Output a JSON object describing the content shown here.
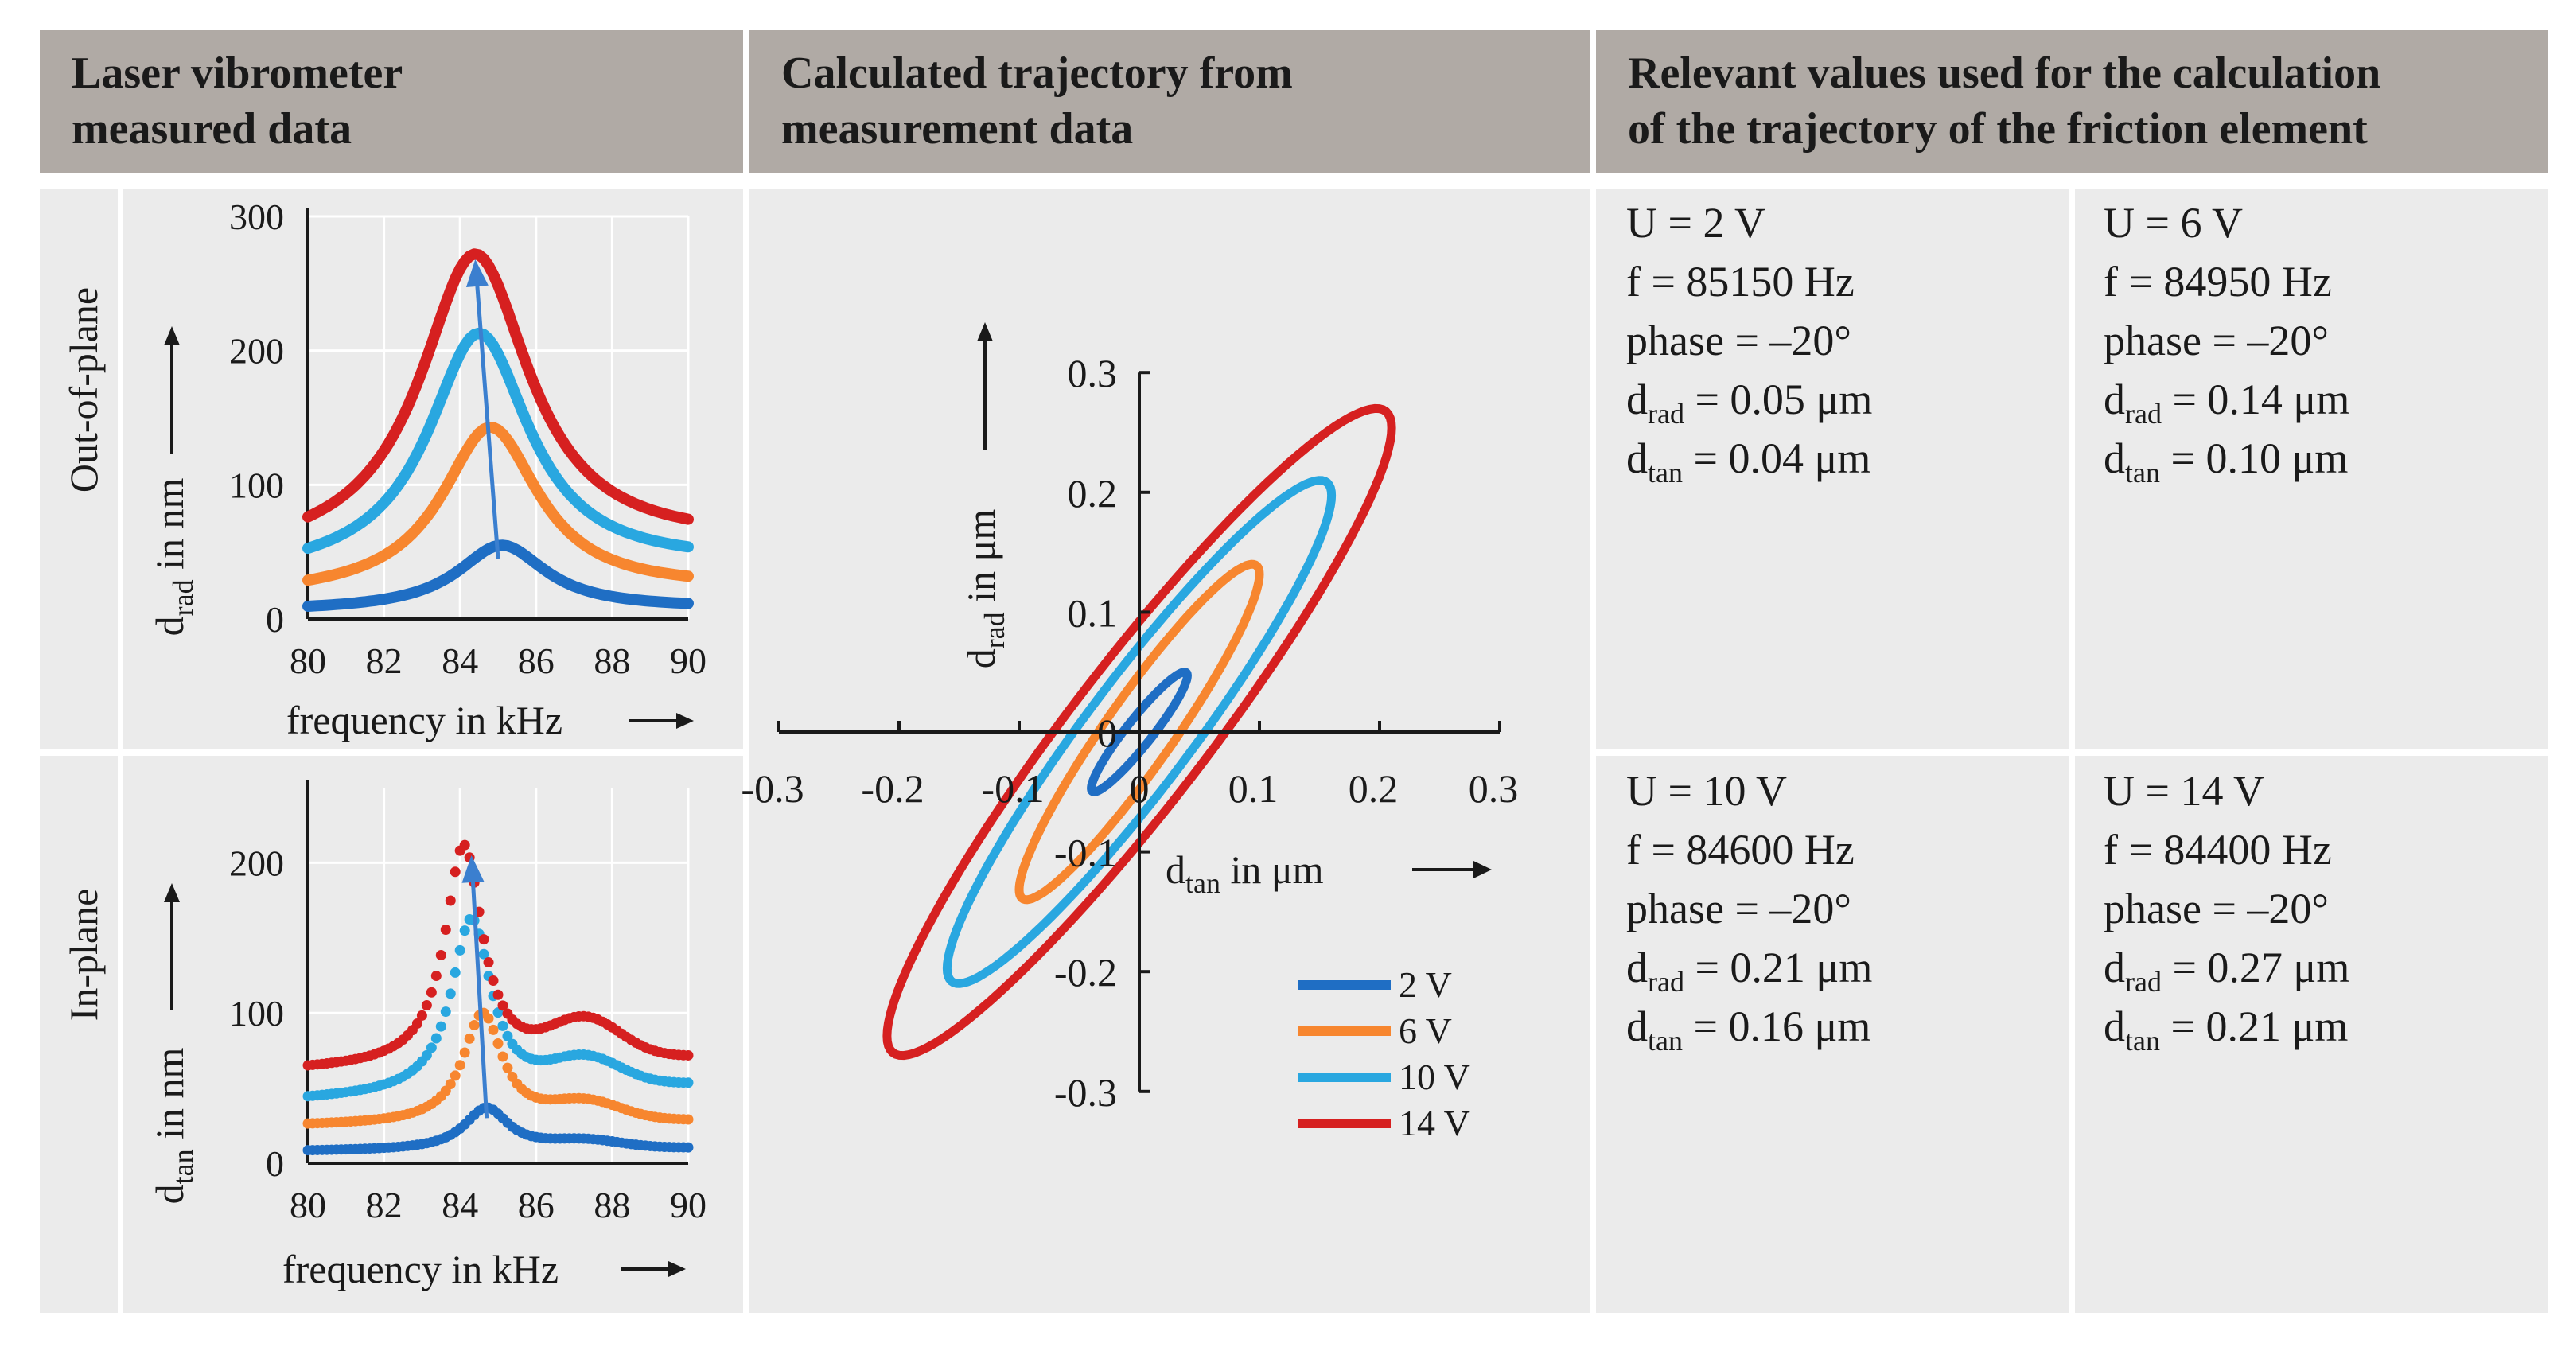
{
  "headers": {
    "col1_line1": "Laser vibrometer",
    "col1_line2": "measured data",
    "col2_line1": "Calculated trajectory from",
    "col2_line2": "measurement data",
    "col3_line1": "Relevant values used for the calculation",
    "col3_line2": "of the trajectory of the friction element"
  },
  "row_labels": {
    "out_of_plane": "Out-of-plane",
    "in_plane": "In-plane"
  },
  "palette": {
    "2V": "#1f6ec4",
    "6V": "#f7862f",
    "10V": "#29a7e0",
    "14V": "#d62020",
    "arrow": "#3b7fcf"
  },
  "values": [
    {
      "u": "U = 2 V",
      "f": "f =  85150 Hz",
      "phase": "phase =  –20°",
      "drad_pre": "d",
      "drad_sub": "rad",
      "drad_val": " = 0.05 μm",
      "dtan_pre": "d",
      "dtan_sub": "tan",
      "dtan_val": " = 0.04 μm",
      "color": "#1f6ec4"
    },
    {
      "u": "U = 6 V",
      "f": "f =  84950 Hz",
      "phase": "phase = –20°",
      "drad_pre": "d",
      "drad_sub": "rad",
      "drad_val": " = 0.14 μm",
      "dtan_pre": "d",
      "dtan_sub": "tan",
      "dtan_val": " = 0.10 μm",
      "color": "#f7862f"
    },
    {
      "u": "U = 10 V",
      "f": "f =  84600 Hz",
      "phase": "phase = –20°",
      "drad_pre": "d",
      "drad_sub": "rad",
      "drad_val": " = 0.21 μm",
      "dtan_pre": "d",
      "dtan_sub": "tan",
      "dtan_val": " = 0.16 μm",
      "color": "#29a7e0"
    },
    {
      "u": "U = 14 V",
      "f": "f =  84400 Hz",
      "phase": "phase = –20°",
      "drad_pre": "d",
      "drad_sub": "rad",
      "drad_val": " = 0.27 μm",
      "dtan_pre": "d",
      "dtan_sub": "tan",
      "dtan_val": " = 0.21 μm",
      "color": "#d62020"
    }
  ],
  "chart_data": [
    {
      "id": "out-of-plane",
      "type": "line",
      "xlabel": "frequency in kHz",
      "ylabel_pre": "d",
      "ylabel_sub": "rad",
      "ylabel_post": " in nm",
      "xlim": [
        80,
        90
      ],
      "ylim": [
        0,
        300
      ],
      "xticks": [
        80,
        82,
        84,
        86,
        88,
        90
      ],
      "yticks": [
        0,
        100,
        200,
        300
      ],
      "grid": true,
      "series": [
        {
          "name": "2 V",
          "peak_x": 85.1,
          "peak_y": 55,
          "base_left": 6,
          "base_right": 8,
          "width": 2.1
        },
        {
          "name": "6 V",
          "peak_x": 84.8,
          "peak_y": 143,
          "base_left": 17,
          "base_right": 22,
          "width": 2.3
        },
        {
          "name": "10 V",
          "peak_x": 84.5,
          "peak_y": 213,
          "base_left": 32,
          "base_right": 40,
          "width": 2.4
        },
        {
          "name": "14 V",
          "peak_x": 84.4,
          "peak_y": 272,
          "base_left": 45,
          "base_right": 55,
          "width": 2.6
        }
      ],
      "arrow": {
        "from": [
          85.0,
          45
        ],
        "to": [
          84.4,
          268
        ]
      }
    },
    {
      "id": "in-plane",
      "type": "line",
      "xlabel": "frequency in kHz",
      "ylabel_pre": "d",
      "ylabel_sub": "tan",
      "ylabel_post": " in nm",
      "xlim": [
        80,
        90
      ],
      "ylim": [
        0,
        250
      ],
      "xticks": [
        80,
        82,
        84,
        86,
        88,
        90
      ],
      "yticks": [
        0,
        100,
        200
      ],
      "grid": true,
      "series": [
        {
          "name": "2 V",
          "peak_x": 84.7,
          "peak_y": 37,
          "base_left": 8,
          "base_right": 10,
          "shoulder": 5,
          "width": 1.0
        },
        {
          "name": "6 V",
          "peak_x": 84.6,
          "peak_y": 100,
          "base_left": 25,
          "base_right": 28,
          "shoulder": 12,
          "width": 0.9
        },
        {
          "name": "10 V",
          "peak_x": 84.3,
          "peak_y": 163,
          "base_left": 42,
          "base_right": 52,
          "shoulder": 18,
          "width": 0.9
        },
        {
          "name": "14 V",
          "peak_x": 84.1,
          "peak_y": 212,
          "base_left": 62,
          "base_right": 70,
          "shoulder": 25,
          "width": 0.85
        }
      ],
      "arrow": {
        "from": [
          84.7,
          30
        ],
        "to": [
          84.3,
          205
        ]
      }
    },
    {
      "id": "trajectory",
      "type": "line",
      "xlabel_pre": "d",
      "xlabel_sub": "tan",
      "xlabel_post": " in μm",
      "ylabel_pre": "d",
      "ylabel_sub": "rad",
      "ylabel_post": " in μm",
      "xlim": [
        -0.3,
        0.3
      ],
      "ylim": [
        -0.3,
        0.3
      ],
      "xticks": [
        -0.3,
        -0.2,
        -0.1,
        0,
        0.1,
        0.2,
        0.3
      ],
      "yticks": [
        -0.3,
        -0.2,
        -0.1,
        0,
        0.1,
        0.2,
        0.3
      ],
      "series": [
        {
          "name": "2 V",
          "dtan": 0.04,
          "drad": 0.05,
          "phase_deg": -20
        },
        {
          "name": "6 V",
          "dtan": 0.1,
          "drad": 0.14,
          "phase_deg": -20
        },
        {
          "name": "10 V",
          "dtan": 0.16,
          "drad": 0.21,
          "phase_deg": -20
        },
        {
          "name": "14 V",
          "dtan": 0.21,
          "drad": 0.27,
          "phase_deg": -20
        }
      ],
      "legend": [
        "2 V",
        "6 V",
        "10 V",
        "14 V"
      ],
      "legend_position": "bottom-right"
    }
  ]
}
